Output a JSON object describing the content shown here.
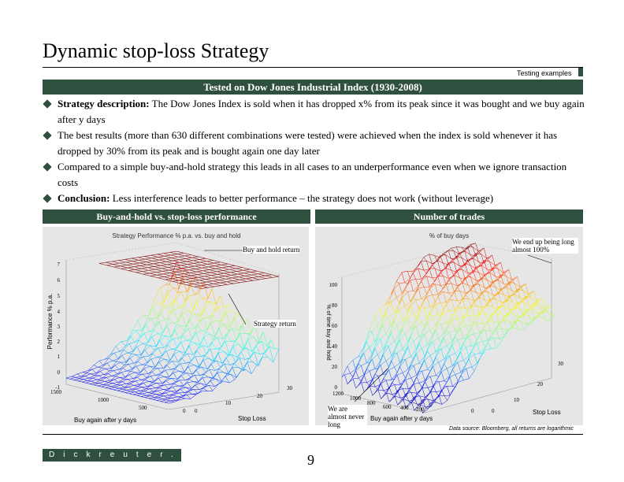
{
  "title": "Dynamic stop-loss Strategy",
  "subtag": "Testing examples",
  "section_heading": "Tested on Dow Jones Industrial Index (1930-2008)",
  "bullets": [
    {
      "lead": "Strategy description:",
      "text": " The Dow Jones Index is sold when it has dropped x% from its peak since it was bought and we buy again after y days"
    },
    {
      "lead": "",
      "text": "The best results (more than 630 different combinations were tested) were achieved when the index is sold whenever it has dropped by 30% from its peak and is bought again one day later"
    },
    {
      "lead": "",
      "text": "Compared to a simple buy-and-hold strategy this leads in all cases to an underperformance even when we ignore transaction costs"
    },
    {
      "lead": "Conclusion:",
      "text": " Less interference leads to better performance – the strategy does not work (without leverage)"
    }
  ],
  "charts": {
    "left": {
      "header": "Buy-and-hold vs. stop-loss performance",
      "plot_title": "Strategy Performance % p.a. vs. buy and hold",
      "zlabel": "Performance % p.a.",
      "zticks": [
        "7",
        "6",
        "5",
        "4",
        "3",
        "2",
        "1",
        "0",
        "-1"
      ],
      "xlabel": "Buy again after y days",
      "xticks": [
        "1500",
        "1000",
        "500",
        "0"
      ],
      "ylabel": "Stop Loss",
      "yticks": [
        "0",
        "10",
        "20",
        "30"
      ],
      "annotations": {
        "buy_hold": "Buy and hold return",
        "strategy": "Strategy return"
      }
    },
    "right": {
      "header": "Number of trades",
      "plot_title": "% of buy days",
      "zlabel": "% of time buy and hold",
      "zticks": [
        "100",
        "80",
        "60",
        "40",
        "20",
        "0"
      ],
      "xlabel": "Buy again after y days",
      "xticks": [
        "1200",
        "1000",
        "800",
        "600",
        "400",
        "200",
        "0"
      ],
      "ylabel": "Stop Loss",
      "yticks": [
        "0",
        "10",
        "20",
        "30"
      ],
      "annotations": {
        "end_up": "We end up being long almost 100%",
        "never_long": "We are almost never long"
      }
    }
  },
  "source": "Data source: Bloomberg, all returns are logarithmic",
  "logo": "Dickreuter.com",
  "page_number": "9",
  "colors": {
    "accent": "#2f4f3f"
  }
}
